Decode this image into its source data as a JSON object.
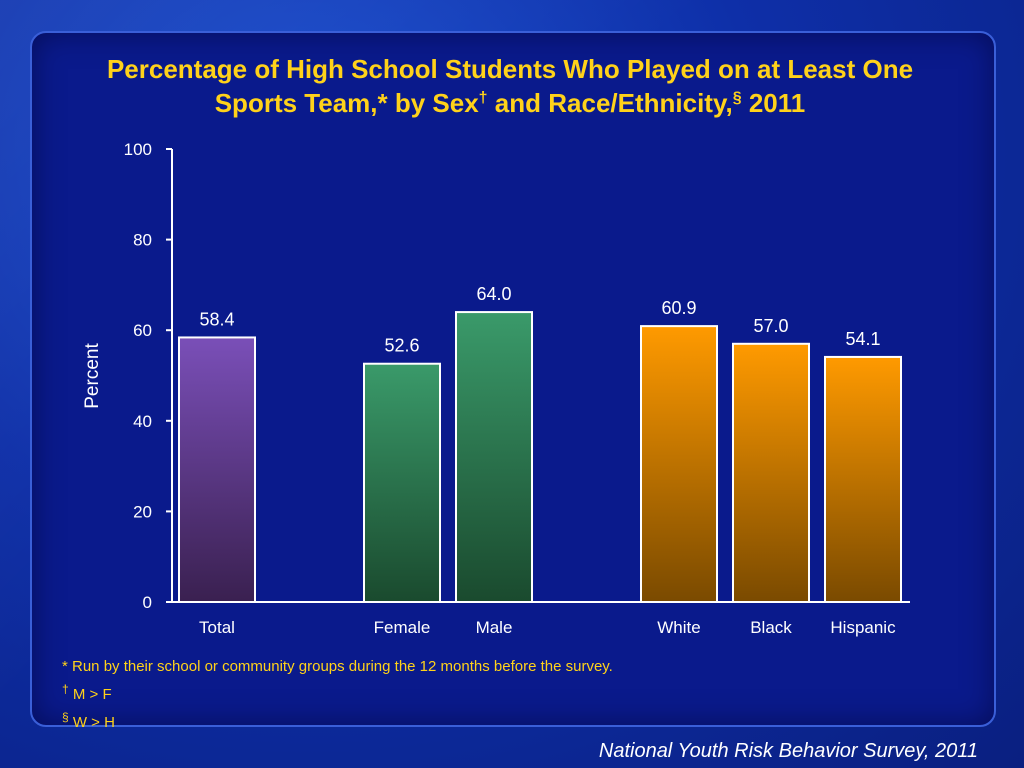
{
  "title": {
    "line1": "Percentage of High School Students Who Played on at Least One",
    "line2_a": "Sports Team,* by Sex",
    "line2_dagger": "†",
    "line2_b": " and Race/Ethnicity,",
    "line2_section": "§",
    "line2_c": " 2011"
  },
  "chart_data": {
    "type": "bar",
    "categories": [
      "Total",
      "Female",
      "Male",
      "White",
      "Black",
      "Hispanic"
    ],
    "values": [
      58.4,
      52.6,
      64.0,
      60.9,
      57.0,
      54.1
    ],
    "value_labels": [
      "58.4",
      "52.6",
      "64.0",
      "60.9",
      "57.0",
      "54.1"
    ],
    "groups": [
      [
        "Total"
      ],
      [
        "Female",
        "Male"
      ],
      [
        "White",
        "Black",
        "Hispanic"
      ]
    ],
    "ylabel": "Percent",
    "ylim": [
      0,
      100
    ],
    "yticks": [
      "0",
      "20",
      "40",
      "60",
      "80",
      "100"
    ],
    "ytick_values": [
      0,
      20,
      40,
      60,
      80,
      100
    ],
    "colors": {
      "Total": [
        "#7a4fb8",
        "#3a2050"
      ],
      "Female": [
        "#3a9a6a",
        "#1a4a2e"
      ],
      "Male": [
        "#3a9a6a",
        "#1a4a2e"
      ],
      "White": [
        "#ff9a00",
        "#7a4a00"
      ],
      "Black": [
        "#ff9a00",
        "#7a4a00"
      ],
      "Hispanic": [
        "#ff9a00",
        "#7a4a00"
      ]
    }
  },
  "footnotes": {
    "star": "* Run by their school or community groups during the 12 months before the survey.",
    "dagger_mark": "†",
    "dagger_text": " M > F",
    "section_mark": "§",
    "section_text": " W > H"
  },
  "source": "National Youth Risk Behavior Survey, 2011"
}
